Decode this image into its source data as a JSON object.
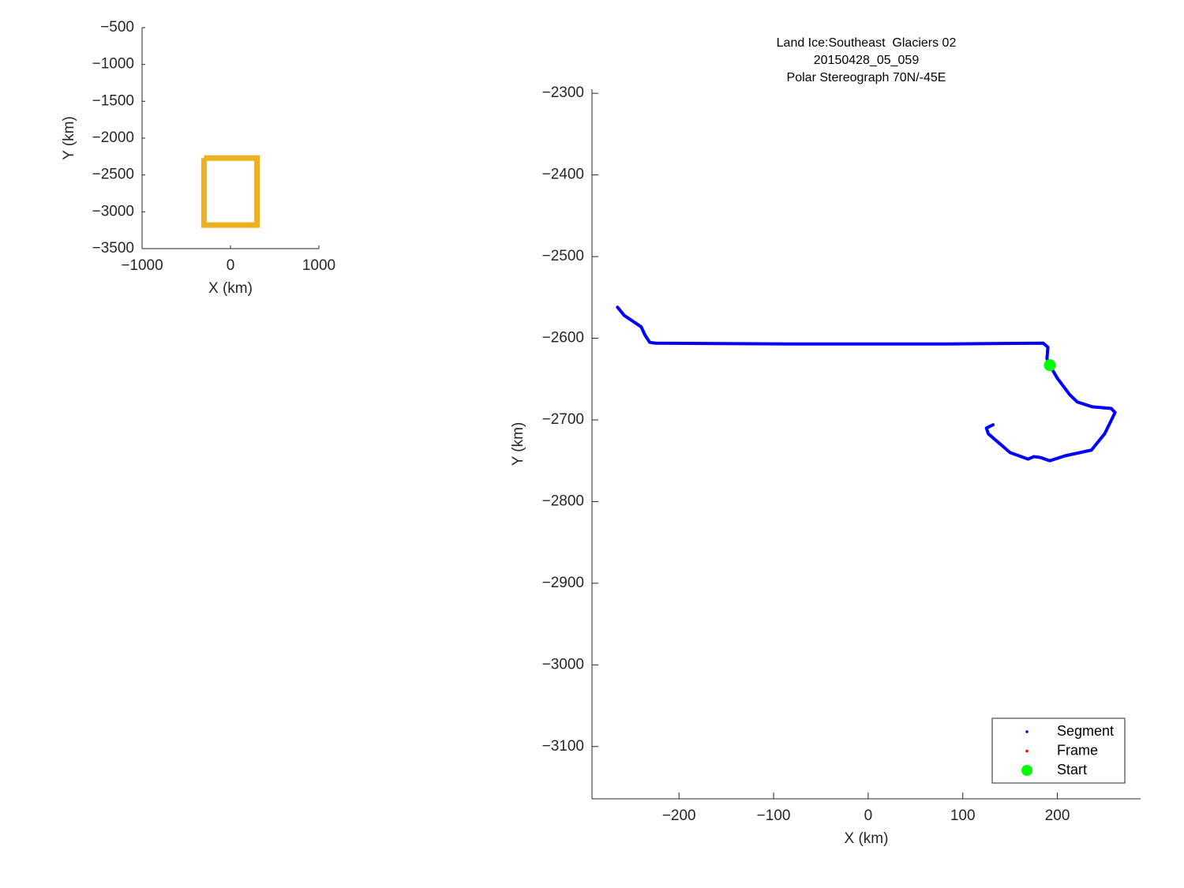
{
  "chart_data": [
    {
      "type": "line",
      "xlabel": "X (km)",
      "ylabel": "Y (km)",
      "x": [
        -300,
        300,
        300,
        -300,
        -300
      ],
      "values": [
        -2270,
        -2270,
        -3180,
        -3180,
        -2270
      ],
      "color": "#EDB120",
      "xlim": [
        -1000,
        1000
      ],
      "xticks": [
        {
          "value": -1000,
          "label": "−1000"
        },
        0,
        1000
      ],
      "ylim": [
        -3500,
        -500
      ],
      "yticks": [
        {
          "value": -500,
          "label": "−500"
        },
        {
          "value": -1000,
          "label": "−1000"
        },
        {
          "value": -1500,
          "label": "−1500"
        },
        {
          "value": -2000,
          "label": "−2000"
        },
        {
          "value": -2500,
          "label": "−2500"
        },
        {
          "value": -3000,
          "label": "−3000"
        },
        {
          "value": -3500,
          "label": "−3500"
        }
      ]
    },
    {
      "type": "line",
      "title": [
        "Land Ice:Southeast  Glaciers 02",
        "20150428_05_059",
        "Polar Stereograph 70N/-45E"
      ],
      "xlabel": "X (km)",
      "ylabel": "Y (km)",
      "series": [
        {
          "name": "Segment",
          "color": "#0000ff",
          "x": [
            -265,
            -258,
            -240,
            -236,
            -231,
            -225,
            -83,
            83,
            185,
            190,
            189,
            192,
            200,
            213,
            221,
            237,
            257,
            261,
            250,
            236,
            208,
            192,
            182,
            175,
            169,
            150,
            138,
            127,
            125,
            132
          ],
          "values": [
            -2562,
            -2572,
            -2586,
            -2596,
            -2605,
            -2606,
            -2607,
            -2607,
            -2606,
            -2611,
            -2625,
            -2633,
            -2649,
            -2669,
            -2678,
            -2684,
            -2686,
            -2691,
            -2717,
            -2737,
            -2744,
            -2750,
            -2746,
            -2745,
            -2748,
            -2740,
            -2728,
            -2717,
            -2710,
            -2706
          ]
        },
        {
          "name": "Frame",
          "color": "#ff0000",
          "x": [],
          "values": []
        },
        {
          "name": "Start",
          "color": "#00ff00",
          "x": [
            192
          ],
          "values": [
            -2633
          ]
        }
      ],
      "legend": "southeast",
      "xlim": [
        -292,
        288
      ],
      "xticks": [
        {
          "value": -200,
          "label": "−200"
        },
        {
          "value": -100,
          "label": "−100"
        },
        0,
        100,
        200
      ],
      "ylim": [
        -3164,
        -2295
      ],
      "yticks": [
        {
          "value": -2300,
          "label": "−2300"
        },
        {
          "value": -2400,
          "label": "−2400"
        },
        {
          "value": -2500,
          "label": "−2500"
        },
        {
          "value": -2600,
          "label": "−2600"
        },
        {
          "value": -2700,
          "label": "−2700"
        },
        {
          "value": -2800,
          "label": "−2800"
        },
        {
          "value": -2900,
          "label": "−2900"
        },
        {
          "value": -3000,
          "label": "−3000"
        },
        {
          "value": -3100,
          "label": "−3100"
        }
      ]
    }
  ]
}
